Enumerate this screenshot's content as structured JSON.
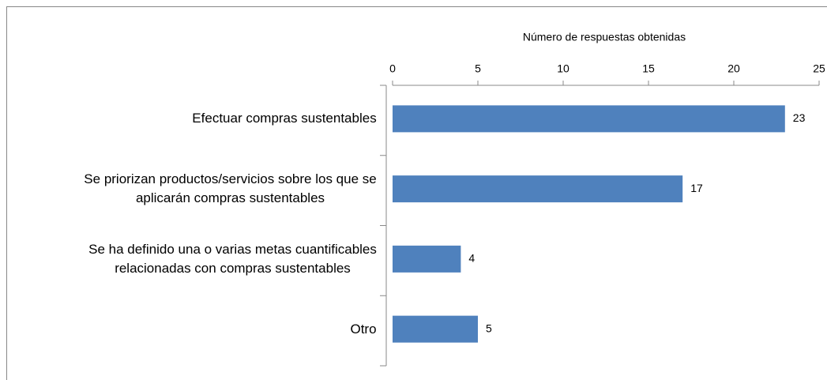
{
  "chart_data": {
    "type": "bar",
    "orientation": "horizontal",
    "x_axis_label": "Número de respuestas obtenidas",
    "categories": [
      "Efectuar compras sustentables",
      "Se priorizan productos/servicios sobre los que se aplicarán compras sustentables",
      "Se ha definido una o varias metas cuantificables relacionadas con compras sustentables",
      "Otro"
    ],
    "values": [
      23,
      17,
      4,
      5
    ],
    "color": "#4f81bd",
    "xlim": [
      0,
      25
    ],
    "xticks": [
      0,
      5,
      10,
      15,
      20,
      25
    ],
    "grid": false
  }
}
